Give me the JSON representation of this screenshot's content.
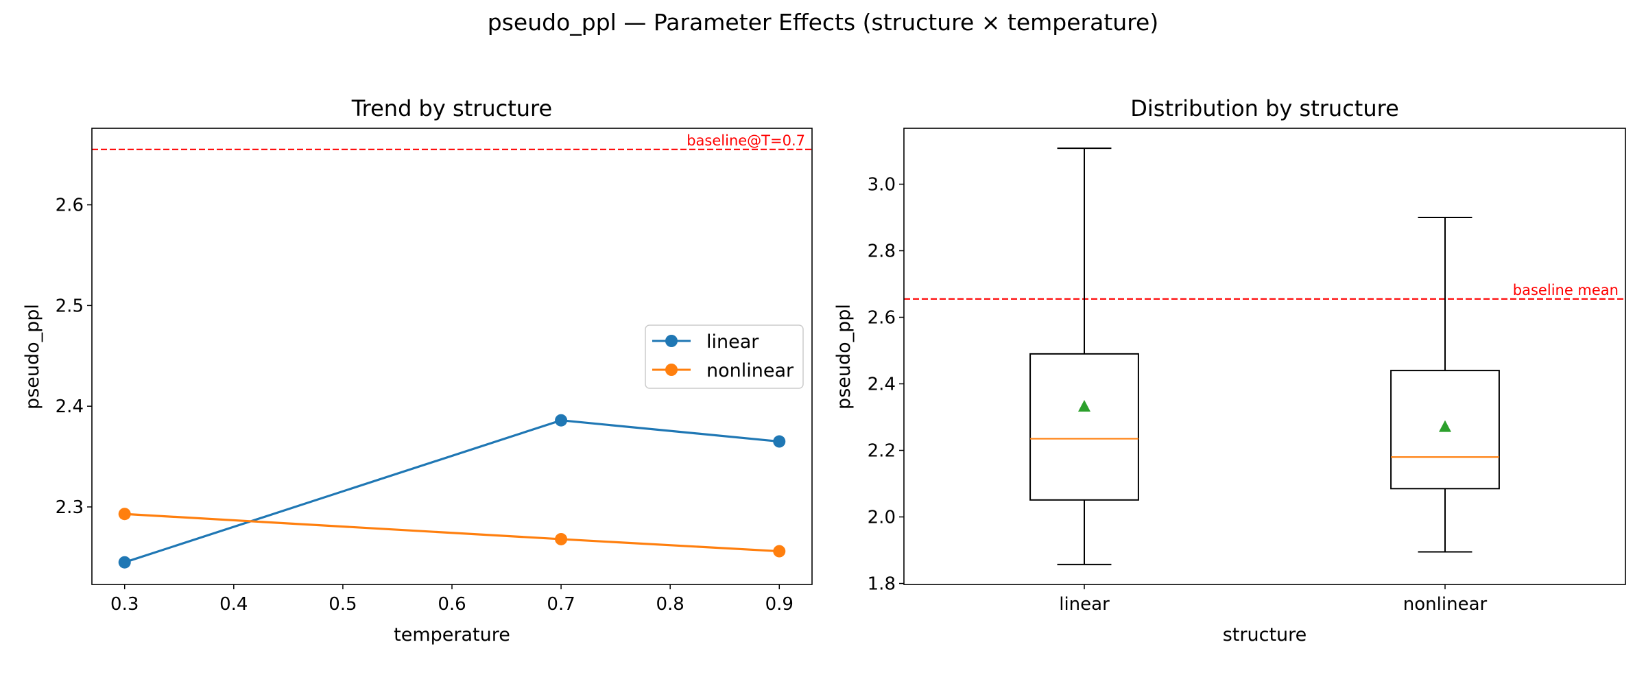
{
  "figure": {
    "suptitle": "pseudo_ppl — Parameter Effects (structure × temperature)"
  },
  "chart_data": [
    {
      "type": "line",
      "title": "Trend by structure",
      "xlabel": "temperature",
      "ylabel": "pseudo_ppl",
      "xlim": [
        0.27,
        0.93
      ],
      "ylim": [
        2.223,
        2.676
      ],
      "xticks": [
        "0.3",
        "0.4",
        "0.5",
        "0.6",
        "0.7",
        "0.8",
        "0.9"
      ],
      "yticks": [
        "2.3",
        "2.4",
        "2.5",
        "2.6"
      ],
      "grid": false,
      "legend_position": "center-right",
      "series": [
        {
          "name": "linear",
          "color": "#1f77b4",
          "marker": "circle",
          "x": [
            0.3,
            0.7,
            0.9
          ],
          "y": [
            2.245,
            2.386,
            2.365
          ]
        },
        {
          "name": "nonlinear",
          "color": "#ff7f0e",
          "marker": "circle",
          "x": [
            0.3,
            0.7,
            0.9
          ],
          "y": [
            2.293,
            2.268,
            2.256
          ]
        }
      ],
      "reference_line": {
        "label": "baseline@T=0.7",
        "y": 2.655,
        "color": "#ff0000",
        "style": "dashed"
      }
    },
    {
      "type": "box",
      "title": "Distribution by structure",
      "xlabel": "structure",
      "ylabel": "pseudo_ppl",
      "ylim": [
        1.797,
        3.168
      ],
      "yticks": [
        "1.8",
        "2.0",
        "2.2",
        "2.4",
        "2.6",
        "2.8",
        "3.0"
      ],
      "categories": [
        "linear",
        "nonlinear"
      ],
      "grid": false,
      "boxes": [
        {
          "name": "linear",
          "whisker_low": 1.857,
          "q1": 2.051,
          "median": 2.235,
          "q3": 2.49,
          "whisker_high": 3.108,
          "mean": 2.333
        },
        {
          "name": "nonlinear",
          "whisker_low": 1.895,
          "q1": 2.085,
          "median": 2.18,
          "q3": 2.44,
          "whisker_high": 2.9,
          "mean": 2.272
        }
      ],
      "colors": {
        "box": "#000000",
        "median": "#ff7f0e",
        "mean": "#2ca02c"
      },
      "reference_line": {
        "label": "baseline mean",
        "y": 2.655,
        "color": "#ff0000",
        "style": "dashed"
      }
    }
  ]
}
